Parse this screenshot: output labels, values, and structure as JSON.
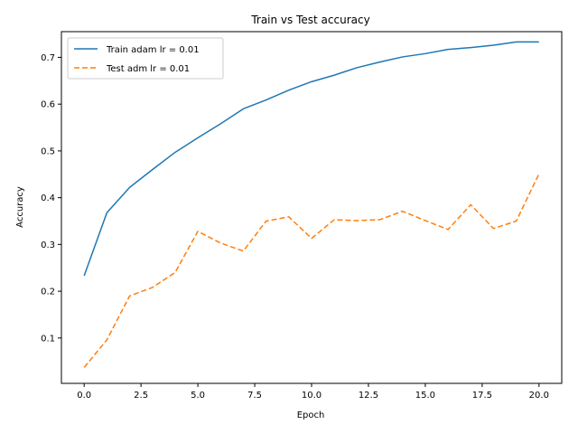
{
  "chart_data": {
    "type": "line",
    "title": "Train vs Test accuracy",
    "xlabel": "Epoch",
    "ylabel": "Accuracy",
    "xlim": [
      -1.0,
      21.0
    ],
    "ylim": [
      0.003,
      0.755
    ],
    "x_ticks": [
      0.0,
      2.5,
      5.0,
      7.5,
      10.0,
      12.5,
      15.0,
      17.5,
      20.0
    ],
    "y_ticks": [
      0.1,
      0.2,
      0.3,
      0.4,
      0.5,
      0.6,
      0.7
    ],
    "grid": false,
    "legend_position": "top-left",
    "x": [
      0,
      1,
      2,
      3,
      4,
      5,
      6,
      7,
      8,
      9,
      10,
      11,
      12,
      13,
      14,
      15,
      16,
      17,
      18,
      19,
      20
    ],
    "series": [
      {
        "name": "Train adam lr = 0.01",
        "color": "#1f77b4",
        "style": "solid",
        "values": [
          0.233,
          0.368,
          0.422,
          0.46,
          0.497,
          0.528,
          0.558,
          0.59,
          0.609,
          0.63,
          0.648,
          0.662,
          0.678,
          0.69,
          0.701,
          0.708,
          0.717,
          0.721,
          0.726,
          0.733,
          0.733
        ]
      },
      {
        "name": "Test adm lr = 0.01",
        "color": "#ff7f0e",
        "style": "dashed",
        "values": [
          0.037,
          0.096,
          0.19,
          0.208,
          0.24,
          0.328,
          0.303,
          0.286,
          0.35,
          0.359,
          0.313,
          0.353,
          0.351,
          0.353,
          0.371,
          0.351,
          0.332,
          0.385,
          0.334,
          0.35,
          0.451
        ]
      }
    ]
  }
}
